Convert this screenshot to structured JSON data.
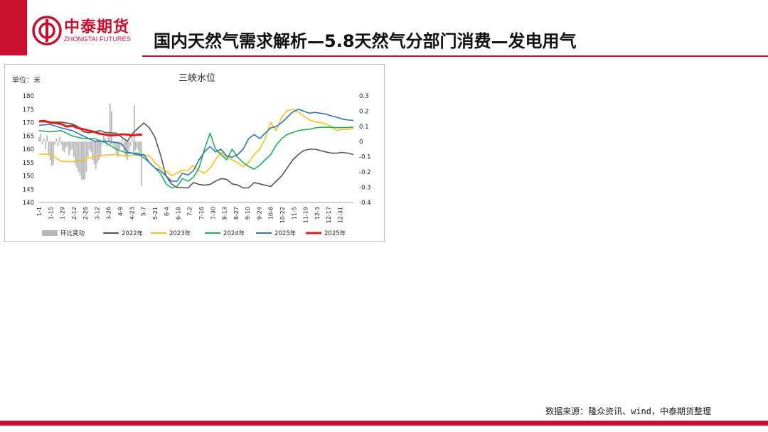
{
  "header": {
    "brand_cn": "中泰期货",
    "brand_en": "ZHONGTAI FUTURES",
    "title": "国内天然气需求解析—5.8天然气分部门消费—发电用气"
  },
  "footer": {
    "source": "数据来源：隆众资讯、wind，中泰期货整理"
  },
  "colors": {
    "brand": "#c8102e",
    "s2022": "#555555",
    "s2023": "#f5c218",
    "s2024": "#1fae5b",
    "s2025a": "#3572b7",
    "s2025b": "#e31b1b",
    "bars": "#b8b8b8"
  },
  "chart_data": {
    "type": "line",
    "title": "三峡水位",
    "unit_label": "单位：米",
    "ylim": [
      140,
      180
    ],
    "yticks": [
      "180",
      "175",
      "170",
      "165",
      "160",
      "155",
      "150",
      "145",
      "140"
    ],
    "y2lim": [
      -0.4,
      0.3
    ],
    "y2ticks": [
      "0.3",
      "0.2",
      "0.1",
      "0",
      "-0.1",
      "-0.2",
      "-0.3",
      "-0.4"
    ],
    "x_ticks": [
      "1-1",
      "1-15",
      "1-29",
      "2-12",
      "2-26",
      "3-12",
      "3-26",
      "4-9",
      "4-23",
      "5-7",
      "5-21",
      "6-4",
      "6-18",
      "7-2",
      "7-16",
      "7-30",
      "8-13",
      "8-27",
      "9-10",
      "9-24",
      "10-8",
      "10-22",
      "11-5",
      "11-19",
      "12-3",
      "12-17",
      "12-31"
    ],
    "legend": [
      "环比变动",
      "2022年",
      "2023年",
      "2024年",
      "2025年",
      "2025年"
    ],
    "series": [
      {
        "name": "2022年",
        "points": [
          [
            1,
            170.3
          ],
          [
            15,
            170.2
          ],
          [
            29,
            170.2
          ],
          [
            43,
            169.5
          ],
          [
            50,
            168.5
          ],
          [
            57,
            166.6
          ],
          [
            64,
            166.2
          ],
          [
            71,
            166.5
          ],
          [
            78,
            167
          ],
          [
            85,
            166.3
          ],
          [
            99,
            166
          ],
          [
            113,
            163
          ],
          [
            120,
            166
          ],
          [
            127,
            168
          ],
          [
            134,
            169.8
          ],
          [
            141,
            168
          ],
          [
            148,
            164.5
          ],
          [
            155,
            158
          ],
          [
            162,
            150
          ],
          [
            169,
            147
          ],
          [
            176,
            145.6
          ],
          [
            183,
            145.6
          ],
          [
            190,
            145.5
          ],
          [
            197,
            147.5
          ],
          [
            204,
            146.8
          ],
          [
            211,
            146.5
          ],
          [
            218,
            146.8
          ],
          [
            225,
            148
          ],
          [
            232,
            149
          ],
          [
            239,
            148.7
          ],
          [
            246,
            147
          ],
          [
            253,
            146.6
          ],
          [
            260,
            145.5
          ],
          [
            267,
            145.5
          ],
          [
            274,
            147.5
          ],
          [
            281,
            147
          ],
          [
            288,
            146.5
          ],
          [
            295,
            146
          ],
          [
            302,
            148
          ],
          [
            309,
            150
          ],
          [
            316,
            153
          ],
          [
            323,
            156
          ],
          [
            330,
            158
          ],
          [
            337,
            159.5
          ],
          [
            344,
            160
          ],
          [
            351,
            160
          ],
          [
            358,
            159.5
          ],
          [
            365,
            159
          ],
          [
            372,
            158.5
          ],
          [
            379,
            158.5
          ],
          [
            386,
            158.8
          ],
          [
            393,
            158.5
          ],
          [
            400,
            158
          ]
        ]
      },
      {
        "name": "2023年",
        "points": [
          [
            1,
            158.2
          ],
          [
            15,
            158
          ],
          [
            29,
            155.5
          ],
          [
            43,
            155.3
          ],
          [
            57,
            156
          ],
          [
            71,
            157.3
          ],
          [
            85,
            157.8
          ],
          [
            99,
            158
          ],
          [
            113,
            157.5
          ],
          [
            127,
            158
          ],
          [
            141,
            157.5
          ],
          [
            148,
            155
          ],
          [
            155,
            153
          ],
          [
            162,
            152
          ],
          [
            169,
            150
          ],
          [
            176,
            151
          ],
          [
            183,
            152.2
          ],
          [
            190,
            152
          ],
          [
            197,
            154
          ],
          [
            204,
            152
          ],
          [
            211,
            151
          ],
          [
            218,
            153
          ],
          [
            225,
            156
          ],
          [
            232,
            159
          ],
          [
            239,
            157
          ],
          [
            246,
            156
          ],
          [
            253,
            155
          ],
          [
            260,
            153.5
          ],
          [
            267,
            155
          ],
          [
            274,
            158
          ],
          [
            281,
            160
          ],
          [
            288,
            164
          ],
          [
            295,
            170
          ],
          [
            302,
            167
          ],
          [
            309,
            172
          ],
          [
            316,
            174.5
          ],
          [
            323,
            175
          ],
          [
            330,
            174
          ],
          [
            337,
            172.5
          ],
          [
            344,
            171
          ],
          [
            351,
            170.3
          ],
          [
            358,
            170
          ],
          [
            365,
            169.5
          ],
          [
            372,
            168.5
          ],
          [
            379,
            167
          ],
          [
            386,
            167.5
          ],
          [
            393,
            167.5
          ],
          [
            400,
            167.7
          ]
        ]
      },
      {
        "name": "2024年",
        "points": [
          [
            1,
            167
          ],
          [
            15,
            166.5
          ],
          [
            29,
            167
          ],
          [
            43,
            165
          ],
          [
            57,
            164
          ],
          [
            71,
            164
          ],
          [
            85,
            162.5
          ],
          [
            99,
            160
          ],
          [
            113,
            158.5
          ],
          [
            127,
            158.5
          ],
          [
            141,
            155
          ],
          [
            155,
            151
          ],
          [
            162,
            147
          ],
          [
            169,
            145.5
          ],
          [
            176,
            146
          ],
          [
            183,
            149
          ],
          [
            190,
            148
          ],
          [
            197,
            149.5
          ],
          [
            204,
            153
          ],
          [
            211,
            160
          ],
          [
            218,
            166
          ],
          [
            225,
            160
          ],
          [
            232,
            158
          ],
          [
            239,
            156
          ],
          [
            246,
            160
          ],
          [
            253,
            157
          ],
          [
            260,
            155
          ],
          [
            267,
            153.5
          ],
          [
            274,
            152.5
          ],
          [
            281,
            154
          ],
          [
            288,
            156
          ],
          [
            295,
            158
          ],
          [
            302,
            161.5
          ],
          [
            309,
            164
          ],
          [
            316,
            165.5
          ],
          [
            323,
            166.3
          ],
          [
            330,
            167
          ],
          [
            337,
            167.3
          ],
          [
            344,
            167.5
          ],
          [
            351,
            168
          ],
          [
            358,
            168.2
          ],
          [
            365,
            168.3
          ],
          [
            372,
            168.2
          ],
          [
            379,
            168.1
          ],
          [
            386,
            168.1
          ],
          [
            393,
            168.2
          ],
          [
            400,
            168.3
          ]
        ]
      },
      {
        "name": "2025年",
        "points": [
          [
            1,
            169
          ],
          [
            15,
            169.3
          ],
          [
            29,
            168
          ],
          [
            43,
            167
          ],
          [
            57,
            165
          ],
          [
            71,
            163
          ],
          [
            85,
            163
          ],
          [
            99,
            162.5
          ],
          [
            106,
            162
          ],
          [
            113,
            159
          ],
          [
            127,
            157.8
          ],
          [
            134,
            158
          ],
          [
            141,
            155
          ],
          [
            148,
            153
          ],
          [
            155,
            152
          ],
          [
            162,
            150
          ],
          [
            169,
            148
          ],
          [
            176,
            148
          ],
          [
            183,
            151
          ],
          [
            190,
            150.3
          ],
          [
            197,
            152
          ],
          [
            204,
            156
          ],
          [
            211,
            159
          ],
          [
            218,
            161
          ],
          [
            225,
            159
          ],
          [
            232,
            160
          ],
          [
            239,
            157.5
          ],
          [
            246,
            157
          ],
          [
            253,
            158
          ],
          [
            260,
            160
          ],
          [
            267,
            164
          ],
          [
            274,
            165.5
          ],
          [
            281,
            164
          ],
          [
            288,
            166
          ],
          [
            295,
            168
          ],
          [
            302,
            168.5
          ],
          [
            309,
            170
          ],
          [
            316,
            172
          ],
          [
            323,
            174
          ],
          [
            330,
            175
          ],
          [
            337,
            174.3
          ],
          [
            344,
            173.5
          ],
          [
            351,
            173.8
          ],
          [
            358,
            173.5
          ],
          [
            365,
            173.2
          ],
          [
            372,
            172.5
          ],
          [
            379,
            172
          ],
          [
            386,
            171.3
          ],
          [
            393,
            171
          ],
          [
            400,
            170.8
          ]
        ]
      },
      {
        "name": "2025年",
        "points": [
          [
            1,
            170.5
          ],
          [
            8,
            170.6
          ],
          [
            15,
            170
          ],
          [
            22,
            169.8
          ],
          [
            29,
            169.5
          ],
          [
            36,
            168.5
          ],
          [
            43,
            168.8
          ],
          [
            50,
            168
          ],
          [
            57,
            167.5
          ],
          [
            64,
            167
          ],
          [
            71,
            166.5
          ],
          [
            78,
            165.8
          ],
          [
            85,
            165.5
          ],
          [
            92,
            165.2
          ],
          [
            99,
            165.3
          ],
          [
            106,
            165.6
          ],
          [
            113,
            165.5
          ],
          [
            120,
            165.2
          ],
          [
            127,
            165.5
          ],
          [
            132,
            165.4
          ]
        ]
      }
    ],
    "changes": [
      [
        1,
        0.03
      ],
      [
        3,
        0.05
      ],
      [
        5,
        -0.02
      ],
      [
        7,
        0.02
      ],
      [
        9,
        -0.05
      ],
      [
        11,
        0.04
      ],
      [
        13,
        -0.08
      ],
      [
        15,
        -0.12
      ],
      [
        17,
        -0.16
      ],
      [
        19,
        -0.15
      ],
      [
        21,
        -0.02
      ],
      [
        23,
        0.02
      ],
      [
        25,
        -0.03
      ],
      [
        27,
        0.03
      ],
      [
        29,
        -0.02
      ],
      [
        31,
        -0.06
      ],
      [
        33,
        -0.07
      ],
      [
        35,
        -0.04
      ],
      [
        37,
        -0.03
      ],
      [
        39,
        -0.09
      ],
      [
        41,
        -0.06
      ],
      [
        43,
        -0.05
      ],
      [
        45,
        -0.1
      ],
      [
        47,
        -0.15
      ],
      [
        49,
        -0.17
      ],
      [
        51,
        -0.2
      ],
      [
        53,
        -0.22
      ],
      [
        55,
        -0.25
      ],
      [
        57,
        -0.25
      ],
      [
        59,
        -0.25
      ],
      [
        61,
        -0.2
      ],
      [
        63,
        -0.1
      ],
      [
        65,
        -0.05
      ],
      [
        67,
        -0.07
      ],
      [
        69,
        -0.12
      ],
      [
        71,
        -0.15
      ],
      [
        73,
        -0.18
      ],
      [
        75,
        -0.14
      ],
      [
        77,
        -0.12
      ],
      [
        79,
        -0.1
      ],
      [
        81,
        -0.02
      ],
      [
        83,
        0.04
      ],
      [
        85,
        0.02
      ],
      [
        87,
        -0.03
      ],
      [
        89,
        0.04
      ],
      [
        91,
        0.25
      ],
      [
        92,
        -0.02
      ],
      [
        93,
        0.2
      ],
      [
        95,
        -0.02
      ],
      [
        97,
        -0.05
      ],
      [
        99,
        -0.08
      ],
      [
        101,
        -0.1
      ],
      [
        103,
        -0.05
      ],
      [
        105,
        -0.03
      ],
      [
        107,
        0.02
      ],
      [
        109,
        -0.06
      ],
      [
        111,
        -0.1
      ],
      [
        113,
        -0.12
      ],
      [
        115,
        -0.06
      ],
      [
        117,
        -0.03
      ],
      [
        119,
        0.05
      ],
      [
        121,
        -0.08
      ],
      [
        122,
        0.24
      ],
      [
        123,
        -0.06
      ],
      [
        125,
        -0.04
      ],
      [
        127,
        -0.06
      ],
      [
        129,
        -0.1
      ],
      [
        131,
        -0.29
      ]
    ]
  }
}
